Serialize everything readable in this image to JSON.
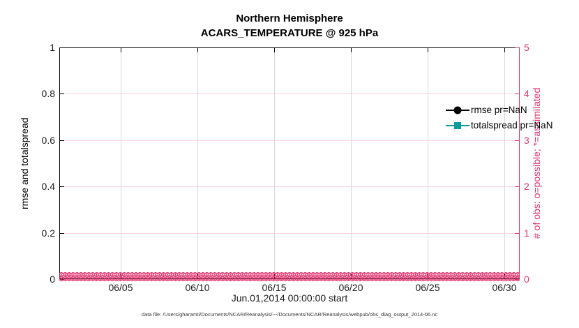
{
  "figure": {
    "title_line1": "Northern Hemisphere",
    "title_line2": "ACARS_TEMPERATURE @ 925 hPa",
    "xlabel": "Jun.01,2014 00:00:00 start",
    "footnote": "data file: /Users/gharamti/Documents/NCAR/Reanalysis/~-/Documents/NCAR/Reanalysis/webpub/obs_diag_output_2014-06.nc"
  },
  "legend": {
    "items": [
      {
        "label": "rmse pr=NaN",
        "marker": "circle",
        "color": "#000000"
      },
      {
        "label": "totalspread pr=NaN",
        "marker": "square",
        "color": "#0f9b9b"
      }
    ]
  },
  "colors": {
    "left_axis": "#000000",
    "right_axis": "#e2336e",
    "grid_vertical": "#d9d9d9",
    "grid_horizontal": "#f7d3e0",
    "obs_marker": "#e2336e",
    "tick_label": "#1a1a1a"
  },
  "chart_data": {
    "type": "line",
    "title": "Northern Hemisphere — ACARS_TEMPERATURE @ 925 hPa",
    "xlabel": "Jun.01,2014 00:00:00 start",
    "x_axis": {
      "range_days": [
        0,
        30
      ],
      "tick_labels": [
        "06/05",
        "06/10",
        "06/15",
        "06/20",
        "06/25",
        "06/30"
      ],
      "tick_days": [
        4,
        9,
        14,
        19,
        24,
        29
      ]
    },
    "y_left": {
      "label": "rmse and totalspread",
      "ticks": [
        "0",
        "0.2",
        "0.4",
        "0.6",
        "0.8",
        "1"
      ],
      "tick_values": [
        0,
        0.2,
        0.4,
        0.6,
        0.8,
        1
      ],
      "range": [
        0,
        1
      ]
    },
    "y_right": {
      "label": "# of obs: o=possible; *=assimilated",
      "ticks": [
        "0",
        "1",
        "2",
        "3",
        "4",
        "5"
      ],
      "tick_values": [
        0,
        1,
        2,
        3,
        4,
        5
      ],
      "range": [
        0,
        5
      ]
    },
    "grid": true,
    "legend_position": "top-right-inside",
    "series": [
      {
        "name": "rmse pr=NaN",
        "axis": "left",
        "values": "NaN (no curve drawn)"
      },
      {
        "name": "totalspread pr=NaN",
        "axis": "left",
        "values": "NaN (no curve drawn)"
      },
      {
        "name": "# of obs possible (o markers)",
        "axis": "right",
        "constant_value": 0
      },
      {
        "name": "# of obs assimilated (* markers)",
        "axis": "right",
        "constant_value": 0
      }
    ]
  }
}
